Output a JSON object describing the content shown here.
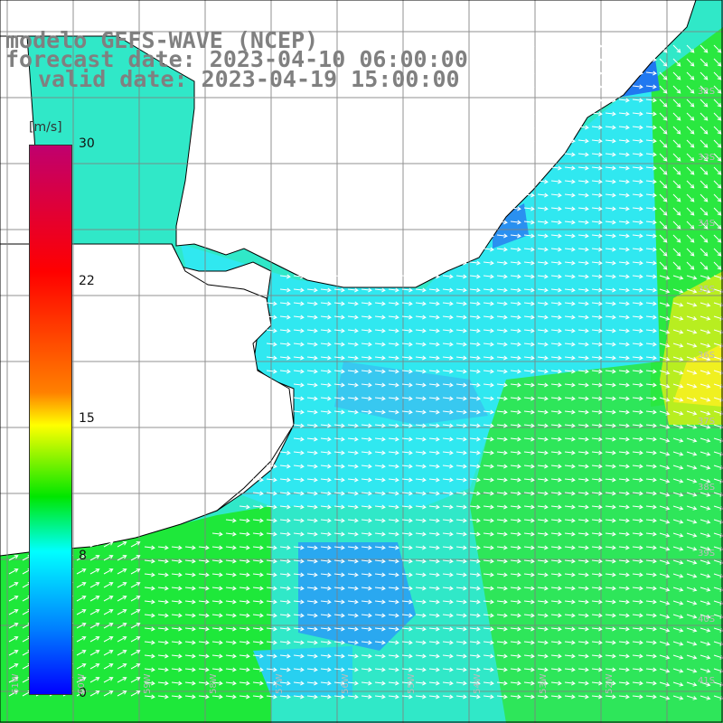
{
  "title": {
    "model": "modelo GEFS-WAVE (NCEP)",
    "forecast": "forecast date: 2023-04-10 06:00:00",
    "valid": "valid date: 2023-04-19 15:00:00"
  },
  "colorbar": {
    "units": "[m/s]",
    "ticks": [
      "30",
      "22",
      "15",
      "8",
      "0"
    ],
    "colors": {
      "top": "#c0006e",
      "red": "#ff0000",
      "orange": "#ff8000",
      "yellow": "#ffff00",
      "green": "#00e600",
      "cyan": "#00ffff",
      "blue": "#0000ff"
    }
  },
  "lat_labels": [
    "32S",
    "33S",
    "34S",
    "35S",
    "36S",
    "37S",
    "38S",
    "39S",
    "40S",
    "41S"
  ],
  "lon_labels": [
    "61W",
    "60W",
    "59W",
    "58W",
    "57W",
    "56W",
    "55W",
    "54W",
    "53W",
    "52W"
  ],
  "map": {
    "variable": "wind speed and direction",
    "land_color": "#ffffff",
    "grid_color": "#808080"
  }
}
